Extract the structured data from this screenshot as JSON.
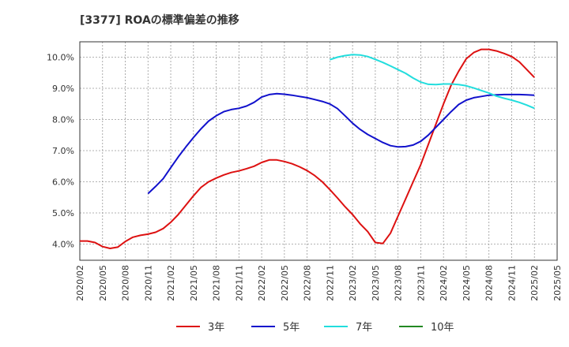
{
  "chart_data": {
    "type": "line",
    "title": "[3377]  ROAの標準偏差の推移",
    "xlabel": "",
    "ylabel": "",
    "x_ticks": [
      "2020/02",
      "2020/05",
      "2020/08",
      "2020/11",
      "2021/02",
      "2021/05",
      "2021/08",
      "2021/11",
      "2022/02",
      "2022/05",
      "2022/08",
      "2022/11",
      "2023/02",
      "2023/05",
      "2023/08",
      "2023/11",
      "2024/02",
      "2024/05",
      "2024/08",
      "2024/11",
      "2025/02",
      "2025/05"
    ],
    "y_ticks": [
      "4.0%",
      "5.0%",
      "6.0%",
      "7.0%",
      "8.0%",
      "9.0%",
      "10.0%"
    ],
    "ylim": [
      3.5,
      10.5
    ],
    "grid": true,
    "legend_position": "bottom",
    "series": [
      {
        "name": "3年",
        "color": "#dd1111",
        "points": [
          [
            "2020/02",
            4.1
          ],
          [
            "2020/03",
            4.1
          ],
          [
            "2020/04",
            4.05
          ],
          [
            "2020/05",
            3.92
          ],
          [
            "2020/06",
            3.86
          ],
          [
            "2020/07",
            3.9
          ],
          [
            "2020/08",
            4.08
          ],
          [
            "2020/09",
            4.22
          ],
          [
            "2020/10",
            4.28
          ],
          [
            "2020/11",
            4.32
          ],
          [
            "2020/12",
            4.38
          ],
          [
            "2021/01",
            4.5
          ],
          [
            "2021/02",
            4.7
          ],
          [
            "2021/03",
            4.95
          ],
          [
            "2021/04",
            5.25
          ],
          [
            "2021/05",
            5.55
          ],
          [
            "2021/06",
            5.82
          ],
          [
            "2021/07",
            6.0
          ],
          [
            "2021/08",
            6.12
          ],
          [
            "2021/09",
            6.22
          ],
          [
            "2021/10",
            6.3
          ],
          [
            "2021/11",
            6.35
          ],
          [
            "2021/12",
            6.42
          ],
          [
            "2022/01",
            6.5
          ],
          [
            "2022/02",
            6.62
          ],
          [
            "2022/03",
            6.7
          ],
          [
            "2022/04",
            6.7
          ],
          [
            "2022/05",
            6.65
          ],
          [
            "2022/06",
            6.58
          ],
          [
            "2022/07",
            6.48
          ],
          [
            "2022/08",
            6.36
          ],
          [
            "2022/09",
            6.2
          ],
          [
            "2022/10",
            6.0
          ],
          [
            "2022/11",
            5.75
          ],
          [
            "2022/12",
            5.48
          ],
          [
            "2023/01",
            5.2
          ],
          [
            "2023/02",
            4.95
          ],
          [
            "2023/03",
            4.65
          ],
          [
            "2023/04",
            4.4
          ],
          [
            "2023/05",
            4.05
          ],
          [
            "2023/06",
            4.02
          ],
          [
            "2023/07",
            4.35
          ],
          [
            "2023/08",
            4.9
          ],
          [
            "2023/09",
            5.45
          ],
          [
            "2023/10",
            6.0
          ],
          [
            "2023/11",
            6.55
          ],
          [
            "2023/12",
            7.2
          ],
          [
            "2024/01",
            7.85
          ],
          [
            "2024/02",
            8.5
          ],
          [
            "2024/03",
            9.1
          ],
          [
            "2024/04",
            9.55
          ],
          [
            "2024/05",
            9.95
          ],
          [
            "2024/06",
            10.15
          ],
          [
            "2024/07",
            10.25
          ],
          [
            "2024/08",
            10.25
          ],
          [
            "2024/09",
            10.2
          ],
          [
            "2024/10",
            10.12
          ],
          [
            "2024/11",
            10.02
          ],
          [
            "2024/12",
            9.85
          ],
          [
            "2025/01",
            9.6
          ],
          [
            "2025/02",
            9.35
          ]
        ]
      },
      {
        "name": "5年",
        "color": "#1111cc",
        "points": [
          [
            "2020/11",
            5.62
          ],
          [
            "2020/12",
            5.85
          ],
          [
            "2021/01",
            6.1
          ],
          [
            "2021/02",
            6.45
          ],
          [
            "2021/03",
            6.8
          ],
          [
            "2021/04",
            7.12
          ],
          [
            "2021/05",
            7.42
          ],
          [
            "2021/06",
            7.7
          ],
          [
            "2021/07",
            7.95
          ],
          [
            "2021/08",
            8.12
          ],
          [
            "2021/09",
            8.25
          ],
          [
            "2021/10",
            8.32
          ],
          [
            "2021/11",
            8.36
          ],
          [
            "2021/12",
            8.43
          ],
          [
            "2022/01",
            8.55
          ],
          [
            "2022/02",
            8.72
          ],
          [
            "2022/03",
            8.8
          ],
          [
            "2022/04",
            8.83
          ],
          [
            "2022/05",
            8.81
          ],
          [
            "2022/06",
            8.78
          ],
          [
            "2022/07",
            8.74
          ],
          [
            "2022/08",
            8.7
          ],
          [
            "2022/09",
            8.64
          ],
          [
            "2022/10",
            8.58
          ],
          [
            "2022/11",
            8.5
          ],
          [
            "2022/12",
            8.35
          ],
          [
            "2023/01",
            8.12
          ],
          [
            "2023/02",
            7.88
          ],
          [
            "2023/03",
            7.68
          ],
          [
            "2023/04",
            7.52
          ],
          [
            "2023/05",
            7.39
          ],
          [
            "2023/06",
            7.26
          ],
          [
            "2023/07",
            7.16
          ],
          [
            "2023/08",
            7.12
          ],
          [
            "2023/09",
            7.13
          ],
          [
            "2023/10",
            7.18
          ],
          [
            "2023/11",
            7.3
          ],
          [
            "2023/12",
            7.5
          ],
          [
            "2024/01",
            7.75
          ],
          [
            "2024/02",
            8.0
          ],
          [
            "2024/03",
            8.25
          ],
          [
            "2024/04",
            8.48
          ],
          [
            "2024/05",
            8.62
          ],
          [
            "2024/06",
            8.7
          ],
          [
            "2024/07",
            8.74
          ],
          [
            "2024/08",
            8.78
          ],
          [
            "2024/09",
            8.79
          ],
          [
            "2024/10",
            8.8
          ],
          [
            "2024/11",
            8.8
          ],
          [
            "2024/12",
            8.8
          ],
          [
            "2025/01",
            8.79
          ],
          [
            "2025/02",
            8.78
          ]
        ]
      },
      {
        "name": "7年",
        "color": "#22dddd",
        "points": [
          [
            "2022/11",
            9.92
          ],
          [
            "2022/12",
            10.0
          ],
          [
            "2023/01",
            10.05
          ],
          [
            "2023/02",
            10.08
          ],
          [
            "2023/03",
            10.07
          ],
          [
            "2023/04",
            10.02
          ],
          [
            "2023/05",
            9.93
          ],
          [
            "2023/06",
            9.83
          ],
          [
            "2023/07",
            9.72
          ],
          [
            "2023/08",
            9.6
          ],
          [
            "2023/09",
            9.48
          ],
          [
            "2023/10",
            9.33
          ],
          [
            "2023/11",
            9.2
          ],
          [
            "2023/12",
            9.13
          ],
          [
            "2024/01",
            9.12
          ],
          [
            "2024/02",
            9.14
          ],
          [
            "2024/03",
            9.14
          ],
          [
            "2024/04",
            9.12
          ],
          [
            "2024/05",
            9.08
          ],
          [
            "2024/06",
            9.01
          ],
          [
            "2024/07",
            8.93
          ],
          [
            "2024/08",
            8.85
          ],
          [
            "2024/09",
            8.75
          ],
          [
            "2024/10",
            8.68
          ],
          [
            "2024/11",
            8.62
          ],
          [
            "2024/12",
            8.55
          ],
          [
            "2025/01",
            8.46
          ],
          [
            "2025/02",
            8.36
          ]
        ]
      },
      {
        "name": "10年",
        "color": "#228822",
        "points": []
      }
    ]
  }
}
